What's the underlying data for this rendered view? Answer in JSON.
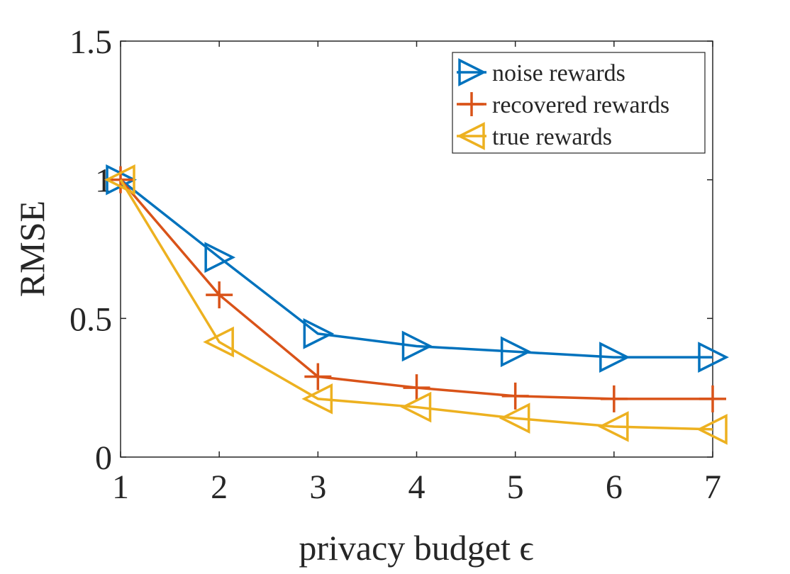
{
  "chart_data": {
    "type": "line",
    "title": "",
    "xlabel": "privacy budget ϵ",
    "ylabel": "RMSE",
    "xlim": [
      1,
      7
    ],
    "ylim": [
      0,
      1.5
    ],
    "x": [
      1,
      2,
      3,
      4,
      5,
      6,
      7
    ],
    "xticks": [
      1,
      2,
      3,
      4,
      5,
      6,
      7
    ],
    "xtick_labels": [
      "1",
      "2",
      "3",
      "4",
      "5",
      "6",
      "7"
    ],
    "yticks": [
      0,
      0.5,
      1,
      1.5
    ],
    "ytick_labels": [
      "0",
      "0.5",
      "1",
      "1.5"
    ],
    "grid": false,
    "legend_position": "top-right",
    "series": [
      {
        "name": "noise rewards",
        "color": "#0072BD",
        "marker": "triangle-right",
        "values": [
          1.0,
          0.72,
          0.445,
          0.4,
          0.38,
          0.36,
          0.36
        ]
      },
      {
        "name": "recovered rewards",
        "color": "#D95319",
        "marker": "plus",
        "values": [
          1.0,
          0.585,
          0.29,
          0.25,
          0.22,
          0.21,
          0.21
        ]
      },
      {
        "name": "true rewards",
        "color": "#EDB120",
        "marker": "triangle-left",
        "values": [
          1.0,
          0.415,
          0.21,
          0.18,
          0.14,
          0.11,
          0.1
        ]
      }
    ]
  }
}
